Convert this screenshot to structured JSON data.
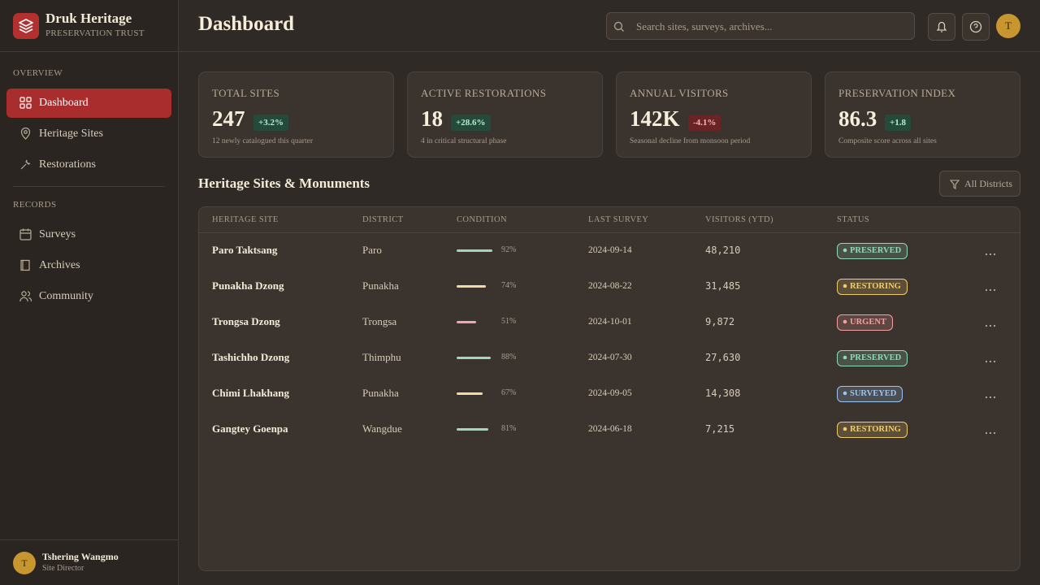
{
  "brand": {
    "name": "Druk Heritage",
    "tagline": "PRESERVATION TRUST"
  },
  "nav": [
    {
      "title": "OVERVIEW",
      "items": [
        "Dashboard",
        "Heritage Sites",
        "Restorations"
      ]
    },
    {
      "title": "RECORDS",
      "items": [
        "Surveys",
        "Archives",
        "Community"
      ]
    }
  ],
  "user": {
    "initial": "T",
    "name": "Tshering Wangmo",
    "role": "Site Director"
  },
  "header": {
    "title": "Dashboard",
    "search_placeholder": "Search sites, surveys, archives...",
    "avatar_initial": "T"
  },
  "stats": [
    {
      "label": "TOTAL SITES",
      "value": "247",
      "change": "+3.2%",
      "note": "12 newly catalogued this quarter"
    },
    {
      "label": "ACTIVE RESTORATIONS",
      "value": "18",
      "change": "+28.6%",
      "note": "4 in critical structural phase"
    },
    {
      "label": "ANNUAL VISITORS",
      "value": "142K",
      "change": "-4.1%",
      "note": "Seasonal decline from monsoon period"
    },
    {
      "label": "PRESERVATION INDEX",
      "value": "86.3",
      "change": "+1.8",
      "note": "Composite score across all sites"
    }
  ],
  "table": {
    "title": "Heritage Sites & Monuments",
    "filter": "All Districts",
    "columns": [
      "HERITAGE SITE",
      "DISTRICT",
      "CONDITION",
      "LAST SURVEY",
      "VISITORS (YTD)",
      "STATUS"
    ],
    "rows": [
      {
        "site": "Paro Taktsang",
        "district": "Paro",
        "condition": {
          "value": 92,
          "label": "92%",
          "color": "#9fd6bf"
        },
        "last_survey": "2024-09-14",
        "visitors": "48,210",
        "status": {
          "label": "PRESERVED",
          "color": "#8fd9b6"
        }
      },
      {
        "site": "Punakha Dzong",
        "district": "Punakha",
        "condition": {
          "value": 74,
          "label": "74%",
          "color": "#f0dca0"
        },
        "last_survey": "2024-08-22",
        "visitors": "31,485",
        "status": {
          "label": "RESTORING",
          "color": "#f0cc6a"
        }
      },
      {
        "site": "Trongsa Dzong",
        "district": "Trongsa",
        "condition": {
          "value": 51,
          "label": "51%",
          "color": "#f0a8b0"
        },
        "last_survey": "2024-10-01",
        "visitors": "9,872",
        "status": {
          "label": "URGENT",
          "color": "#f4a0a0"
        }
      },
      {
        "site": "Tashichho Dzong",
        "district": "Thimphu",
        "condition": {
          "value": 88,
          "label": "88%",
          "color": "#9fd6bf"
        },
        "last_survey": "2024-07-30",
        "visitors": "27,630",
        "status": {
          "label": "PRESERVED",
          "color": "#8fd9b6"
        }
      },
      {
        "site": "Chimi Lhakhang",
        "district": "Punakha",
        "condition": {
          "value": 67,
          "label": "67%",
          "color": "#f0dca0"
        },
        "last_survey": "2024-09-05",
        "visitors": "14,308",
        "status": {
          "label": "SURVEYED",
          "color": "#9cc4f0"
        }
      },
      {
        "site": "Gangtey Goenpa",
        "district": "Wangdue",
        "condition": {
          "value": 81,
          "label": "81%",
          "color": "#9fd6bf"
        },
        "last_survey": "2024-06-18",
        "visitors": "7,215",
        "status": {
          "label": "RESTORING",
          "color": "#f0cc6a"
        }
      }
    ]
  }
}
